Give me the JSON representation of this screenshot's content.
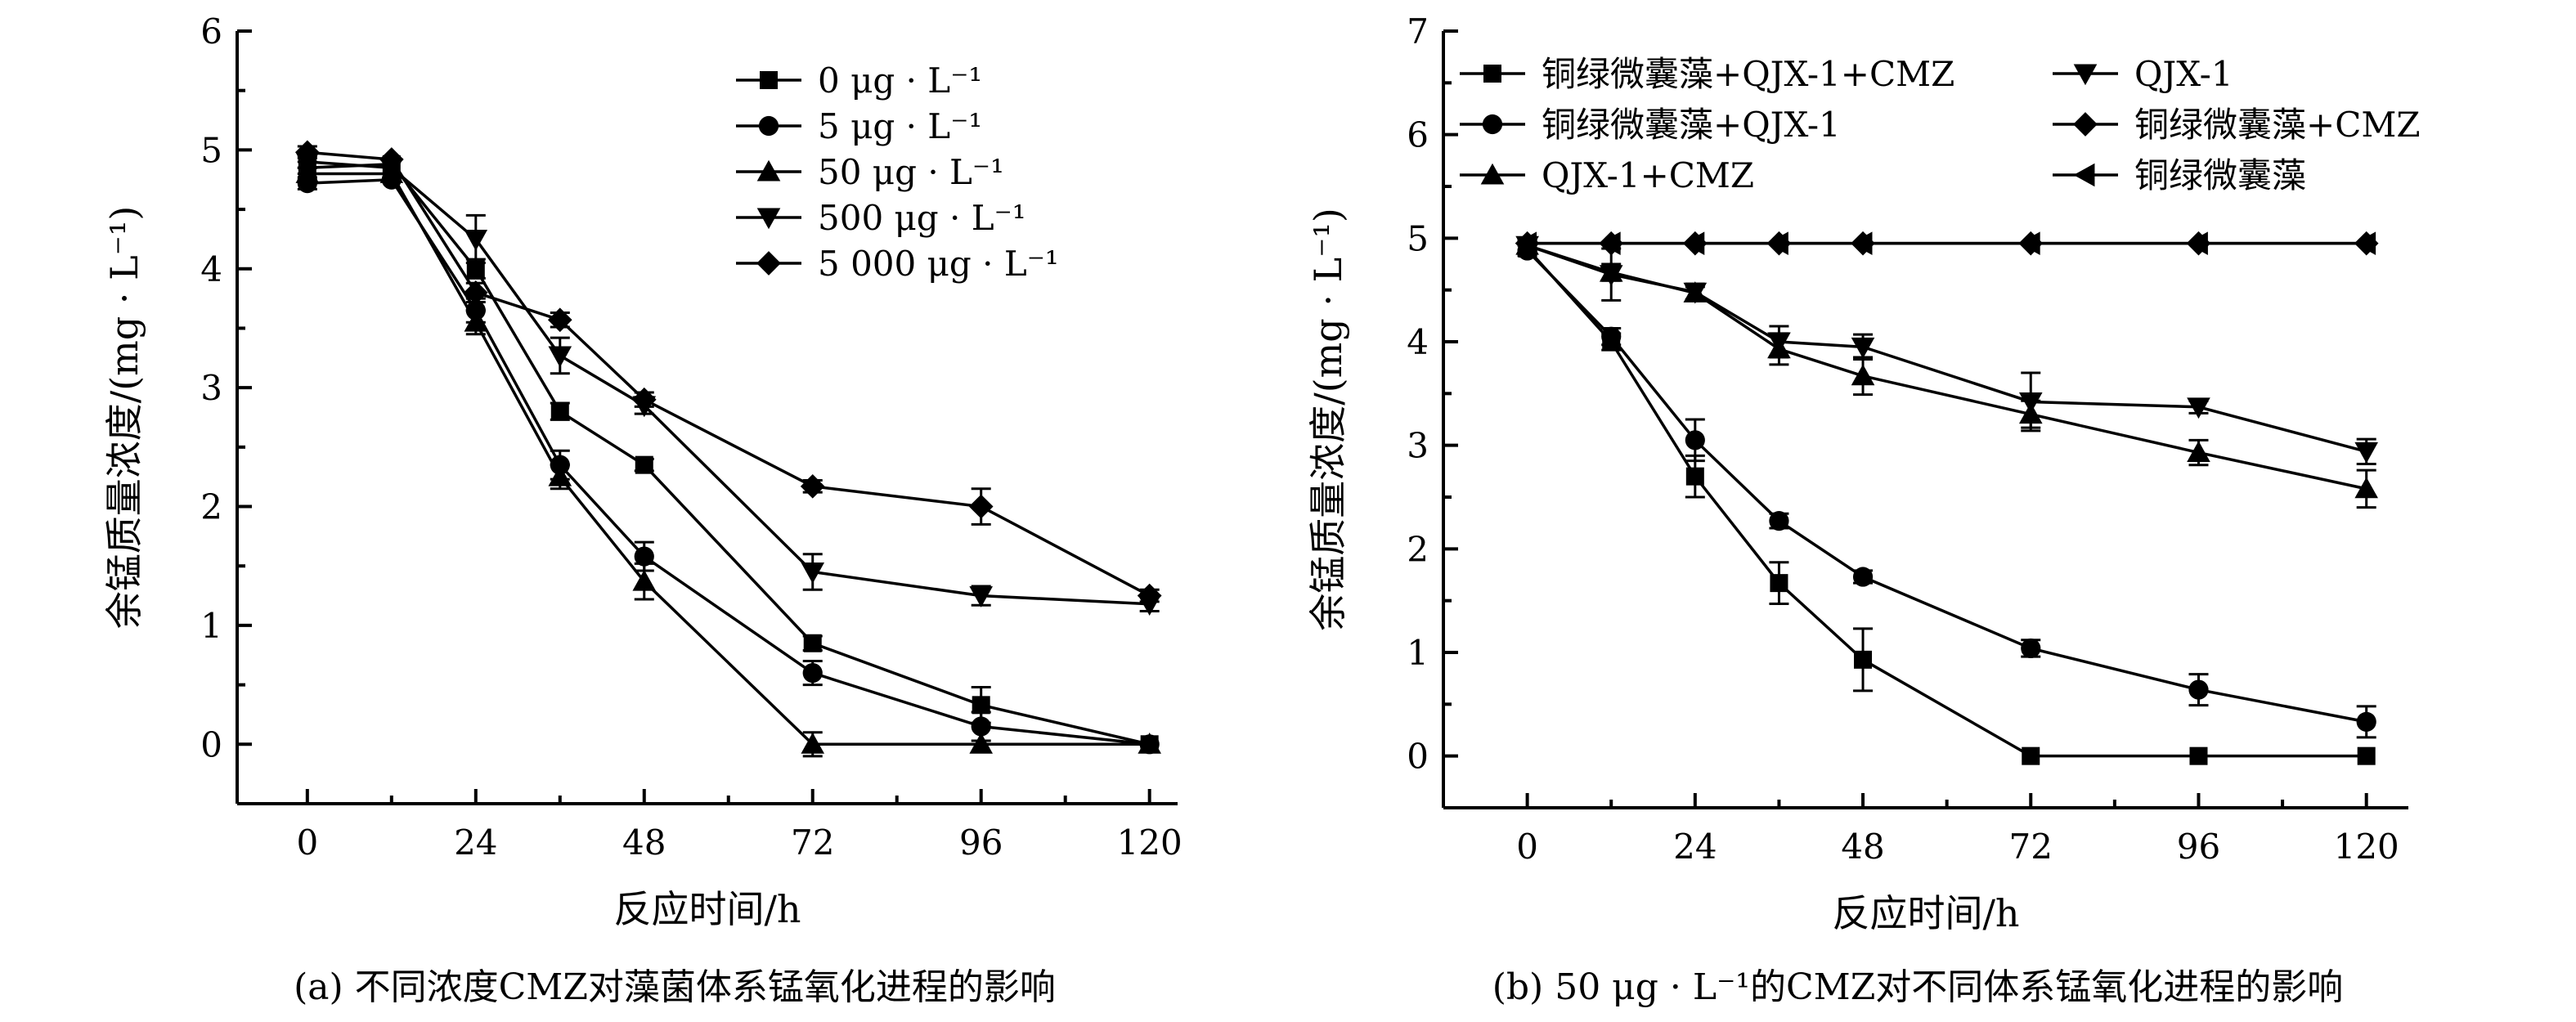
{
  "chart_data": [
    {
      "type": "line",
      "caption": "(a) 不同浓度CMZ对藻菌体系锰氧化进程的影响",
      "xlabel": "反应时间/h",
      "ylabel": "余锰质量浓度/(mg · L⁻¹)",
      "xlim": [
        -10,
        124
      ],
      "ylim": [
        -0.5,
        6
      ],
      "xticks": [
        0,
        24,
        48,
        72,
        96,
        120
      ],
      "yticks": [
        0,
        1,
        2,
        3,
        4,
        5,
        6
      ],
      "legend_position": "top-right",
      "grid": false,
      "x": [
        0,
        12,
        24,
        36,
        48,
        72,
        96,
        120
      ],
      "series": [
        {
          "name": "0 μg · L⁻¹",
          "marker": "square",
          "values": [
            4.85,
            4.88,
            4.0,
            2.8,
            2.35,
            0.85,
            0.33,
            0.0
          ],
          "errors": [
            0.05,
            0.04,
            0.08,
            0.07,
            0.05,
            0.06,
            0.15,
            0.03
          ]
        },
        {
          "name": "5 μg · L⁻¹",
          "marker": "circle",
          "values": [
            4.72,
            4.75,
            3.65,
            2.35,
            1.58,
            0.6,
            0.15,
            0.0
          ],
          "errors": [
            0.05,
            0.04,
            0.1,
            0.12,
            0.12,
            0.1,
            0.12,
            0.03
          ]
        },
        {
          "name": "50 μg · L⁻¹",
          "marker": "triangle-up",
          "values": [
            4.8,
            4.8,
            3.55,
            2.25,
            1.37,
            0.0,
            0.0,
            0.0
          ],
          "errors": [
            0.05,
            0.04,
            0.1,
            0.1,
            0.15,
            0.1,
            0.03,
            0.03
          ]
        },
        {
          "name": "500 μg · L⁻¹",
          "marker": "triangle-down",
          "values": [
            4.9,
            4.85,
            4.25,
            3.27,
            2.85,
            1.45,
            1.25,
            1.18
          ],
          "errors": [
            0.05,
            0.04,
            0.2,
            0.15,
            0.07,
            0.15,
            0.08,
            0.06
          ]
        },
        {
          "name": "5 000 μg · L⁻¹",
          "marker": "diamond",
          "values": [
            4.98,
            4.92,
            3.8,
            3.57,
            2.9,
            2.17,
            2.0,
            1.25
          ],
          "errors": [
            0.05,
            0.04,
            0.08,
            0.06,
            0.06,
            0.05,
            0.15,
            0.05
          ]
        }
      ]
    },
    {
      "type": "line",
      "caption": "(b) 50 μg · L⁻¹的CMZ对不同体系锰氧化进程的影响",
      "xlabel": "反应时间/h",
      "ylabel": "余锰质量浓度/(mg · L⁻¹)",
      "xlim": [
        -12,
        126
      ],
      "ylim": [
        -0.5,
        7
      ],
      "xticks": [
        0,
        24,
        48,
        72,
        96,
        120
      ],
      "yticks": [
        0,
        1,
        2,
        3,
        4,
        5,
        6,
        7
      ],
      "legend_position": "top",
      "grid": false,
      "x": [
        0,
        12,
        24,
        36,
        48,
        72,
        96,
        120
      ],
      "series": [
        {
          "name": "铜绿微囊藻+QJX-1+CMZ",
          "marker": "square",
          "values": [
            4.9,
            4.0,
            2.7,
            1.67,
            0.93,
            0.0,
            0.0,
            0.0
          ],
          "errors": [
            0.05,
            0.08,
            0.2,
            0.2,
            0.3,
            0.03,
            0.03,
            0.03
          ]
        },
        {
          "name": "铜绿微囊藻+QJX-1",
          "marker": "circle",
          "values": [
            4.88,
            4.05,
            3.05,
            2.27,
            1.73,
            1.04,
            0.64,
            0.33
          ],
          "errors": [
            0.05,
            0.08,
            0.2,
            0.07,
            0.06,
            0.08,
            0.15,
            0.15
          ]
        },
        {
          "name": "QJX-1+CMZ",
          "marker": "triangle-up",
          "values": [
            4.93,
            4.67,
            4.47,
            3.93,
            3.67,
            3.3,
            2.93,
            2.58
          ],
          "errors": [
            0.05,
            0.08,
            0.06,
            0.15,
            0.18,
            0.13,
            0.12,
            0.18
          ]
        },
        {
          "name": "QJX-1",
          "marker": "triangle-down",
          "values": [
            4.93,
            4.65,
            4.48,
            4.0,
            3.95,
            3.42,
            3.37,
            2.94
          ],
          "errors": [
            0.05,
            0.25,
            0.08,
            0.15,
            0.12,
            0.28,
            0.06,
            0.12
          ]
        },
        {
          "name": "铜绿微囊藻+CMZ",
          "marker": "diamond",
          "values": [
            4.95,
            4.95,
            4.95,
            4.95,
            4.95,
            4.95,
            4.95,
            4.95
          ],
          "errors": [
            0.03,
            0.03,
            0.03,
            0.03,
            0.03,
            0.03,
            0.03,
            0.03
          ]
        },
        {
          "name": "铜绿微囊藻",
          "marker": "triangle-left",
          "values": [
            4.95,
            4.95,
            4.95,
            4.95,
            4.95,
            4.95,
            4.95,
            4.95
          ],
          "errors": [
            0.03,
            0.03,
            0.03,
            0.03,
            0.03,
            0.03,
            0.03,
            0.03
          ]
        }
      ]
    }
  ]
}
